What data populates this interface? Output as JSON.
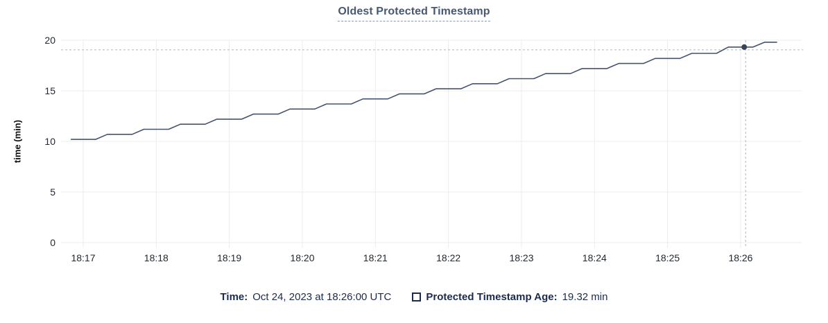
{
  "title": "Oldest Protected Timestamp",
  "chart_data": {
    "type": "line",
    "title": "Oldest Protected Timestamp",
    "xlabel": "",
    "ylabel": "time (min)",
    "ylim": [
      0,
      20
    ],
    "y_ticks": [
      0,
      5,
      10,
      15,
      20
    ],
    "x_ticks": [
      {
        "t": 17,
        "label": "18:17"
      },
      {
        "t": 18,
        "label": "18:18"
      },
      {
        "t": 19,
        "label": "18:19"
      },
      {
        "t": 20,
        "label": "18:20"
      },
      {
        "t": 21,
        "label": "18:21"
      },
      {
        "t": 22,
        "label": "18:22"
      },
      {
        "t": 23,
        "label": "18:23"
      },
      {
        "t": 24,
        "label": "18:24"
      },
      {
        "t": 25,
        "label": "18:25"
      },
      {
        "t": 26,
        "label": "18:26"
      }
    ],
    "grid": true,
    "legend_position": "bottom",
    "x_unit": "minutes after 18:00 UTC",
    "series": [
      {
        "name": "Protected Timestamp Age",
        "unit": "min",
        "points": [
          {
            "t": 16.83,
            "v": 10.2
          },
          {
            "t": 17.17,
            "v": 10.2
          },
          {
            "t": 17.33,
            "v": 10.7
          },
          {
            "t": 17.67,
            "v": 10.7
          },
          {
            "t": 17.83,
            "v": 11.2
          },
          {
            "t": 18.17,
            "v": 11.2
          },
          {
            "t": 18.33,
            "v": 11.7
          },
          {
            "t": 18.67,
            "v": 11.7
          },
          {
            "t": 18.83,
            "v": 12.2
          },
          {
            "t": 19.17,
            "v": 12.2
          },
          {
            "t": 19.33,
            "v": 12.7
          },
          {
            "t": 19.67,
            "v": 12.7
          },
          {
            "t": 19.83,
            "v": 13.2
          },
          {
            "t": 20.17,
            "v": 13.2
          },
          {
            "t": 20.33,
            "v": 13.7
          },
          {
            "t": 20.67,
            "v": 13.7
          },
          {
            "t": 20.83,
            "v": 14.2
          },
          {
            "t": 21.17,
            "v": 14.2
          },
          {
            "t": 21.33,
            "v": 14.7
          },
          {
            "t": 21.67,
            "v": 14.7
          },
          {
            "t": 21.83,
            "v": 15.2
          },
          {
            "t": 22.17,
            "v": 15.2
          },
          {
            "t": 22.33,
            "v": 15.7
          },
          {
            "t": 22.67,
            "v": 15.7
          },
          {
            "t": 22.83,
            "v": 16.2
          },
          {
            "t": 23.17,
            "v": 16.2
          },
          {
            "t": 23.33,
            "v": 16.7
          },
          {
            "t": 23.67,
            "v": 16.7
          },
          {
            "t": 23.83,
            "v": 17.2
          },
          {
            "t": 24.17,
            "v": 17.2
          },
          {
            "t": 24.33,
            "v": 17.7
          },
          {
            "t": 24.67,
            "v": 17.7
          },
          {
            "t": 24.83,
            "v": 18.2
          },
          {
            "t": 25.17,
            "v": 18.2
          },
          {
            "t": 25.33,
            "v": 18.7
          },
          {
            "t": 25.67,
            "v": 18.7
          },
          {
            "t": 25.83,
            "v": 19.32
          },
          {
            "t": 26.17,
            "v": 19.32
          },
          {
            "t": 26.33,
            "v": 19.8
          },
          {
            "t": 26.5,
            "v": 19.8
          }
        ]
      }
    ],
    "hover": {
      "t": 26.05,
      "v": 19.32,
      "time_label": "Oct 24, 2023 at 18:26:00 UTC",
      "value_label": "19.32 min"
    }
  },
  "legend": {
    "time_label": "Time:",
    "time_value": "Oct 24, 2023 at 18:26:00 UTC",
    "series_label": "Protected Timestamp Age:",
    "series_value": "19.32 min"
  },
  "colors": {
    "line": "#43526d",
    "dot": "#394455",
    "crosshair": "#a9b6c3",
    "grid": "#ececec",
    "title": "#475872",
    "title_underline": "#8b97b1",
    "legend_text": "#1b2b4d",
    "tick_text": "#24282f"
  }
}
